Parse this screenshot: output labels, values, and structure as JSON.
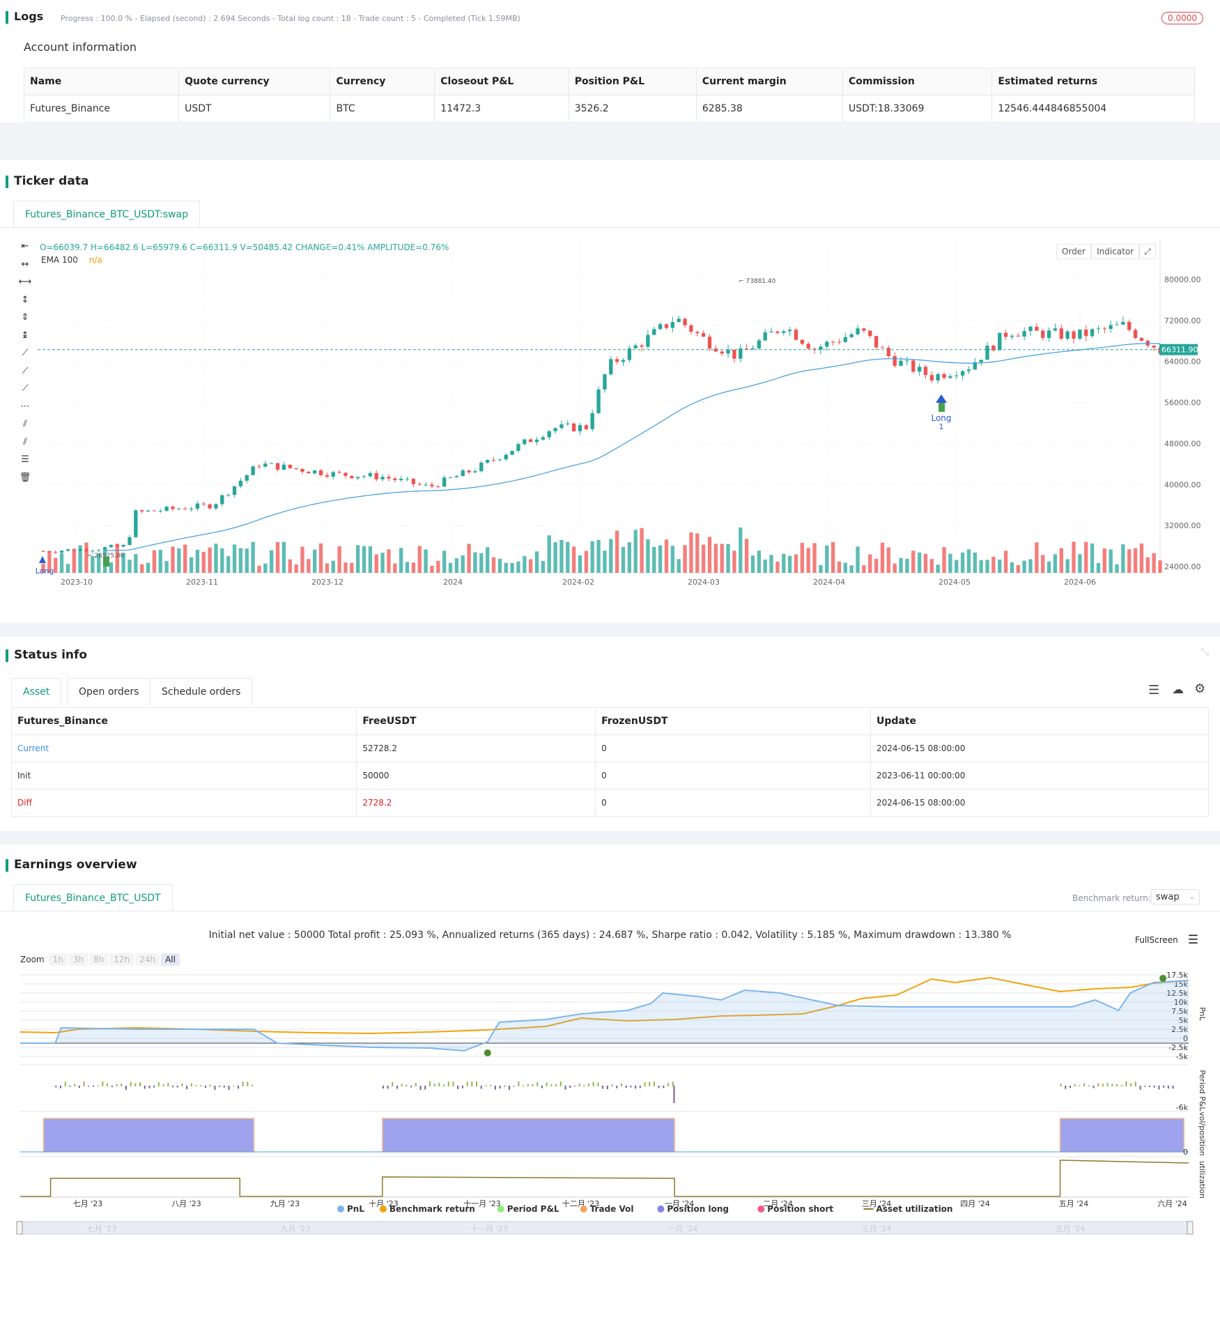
{
  "logs": {
    "title": "Logs",
    "progress": "Progress : 100.0 % - Elapsed (second) : 2.694  Seconds - Total log count : 18 - Trade count : 5 - Completed (Tick 1.59MB)",
    "badge": "0.0000"
  },
  "account": {
    "title": "Account information",
    "headers": [
      "Name",
      "Quote currency",
      "Currency",
      "Closeout P&L",
      "Position P&L",
      "Current margin",
      "Commission",
      "Estimated returns"
    ],
    "row": [
      "Futures_Binance",
      "USDT",
      "BTC",
      "11472.3",
      "3526.2",
      "6285.38",
      "USDT:18.33069",
      "12546.444846855004"
    ]
  },
  "ticker": {
    "title": "Ticker data",
    "tab": "Futures_Binance_BTC_USDT:swap",
    "ohlc": "O=66039.7 H=66482.6 L=65979.6 C=66311.9 V=50485.42 CHANGE=0.41% AMPLITUDE=0.76%",
    "ema_label": "EMA 100",
    "ema_value": "n/a",
    "btn_order": "Order",
    "btn_indicator": "Indicator",
    "last_price": "66311.90",
    "high_label": "73881.40",
    "low_label": "26525.00",
    "long_label": "Long",
    "long_count": "1",
    "long_label_left": "Long",
    "y_ticks": [
      "80000.00",
      "72000.00",
      "64000.00",
      "56000.00",
      "48000.00",
      "40000.00",
      "32000.00",
      "24000.00"
    ],
    "x_ticks": [
      "2023-10",
      "2023-11",
      "2023-12",
      "2024",
      "2024-02",
      "2024-03",
      "2024-04",
      "2024-05",
      "2024-06"
    ],
    "colors": {
      "up": "#26a69a",
      "down": "#ef5350",
      "ema": "#3c9be0",
      "last": "#26a69a"
    }
  },
  "status": {
    "title": "Status info",
    "tabs": [
      "Asset",
      "Open orders",
      "Schedule orders"
    ],
    "headers": [
      "Futures_Binance",
      "FreeUSDT",
      "FrozenUSDT",
      "Update"
    ],
    "rows": [
      [
        "Current",
        "52728.2",
        "0",
        "2024-06-15 08:00:00"
      ],
      [
        "Init",
        "50000",
        "0",
        "2023-06-11 00:00:00"
      ],
      [
        "Diff",
        "2728.2",
        "0",
        "2024-06-15 08:00:00"
      ]
    ]
  },
  "earnings": {
    "title": "Earnings overview",
    "tab": "Futures_Binance_BTC_USDT",
    "benchmark_label": "Benchmark return:",
    "benchmark_value": "swap",
    "summary": "Initial net value : 50000 Total profit : 25.093 %, Annualized returns (365 days) : 24.687 %, Sharpe ratio : 0.042, Volatility : 5.185 %, Maximum drawdown : 13.380 %",
    "fullscreen": "FullScreen",
    "zoom_label": "Zoom",
    "zoom_buttons": [
      "1h",
      "3h",
      "8h",
      "12h",
      "24h",
      "All"
    ],
    "pnl_ticks": [
      "17.5k",
      "15k",
      "12.5k",
      "10k",
      "7.5k",
      "5k",
      "2.5k",
      "0",
      "-2.5k",
      "-5k"
    ],
    "period_ticks": [
      "-6k"
    ],
    "pos_ticks": [
      "0"
    ],
    "axis_titles": [
      "PnL",
      "Period P&L",
      "vol/position",
      "utilization"
    ],
    "x_ticks": [
      "七月 '23",
      "八月 '23",
      "九月 '23",
      "十月 '23",
      "十一月 '23",
      "十二月 '23",
      "一月 '24",
      "二月 '24",
      "三月 '24",
      "四月 '24",
      "五月 '24",
      "六月 '24"
    ],
    "nav_ticks": [
      "七月 '23",
      "九月 '23",
      "十一月 '23",
      "一月 '24",
      "三月 '24",
      "五月 '24"
    ],
    "legend": [
      {
        "label": "PnL",
        "color": "#7cb5ec"
      },
      {
        "label": "Benchmark return",
        "color": "#f0a30a"
      },
      {
        "label": "Period P&L",
        "color": "#90ed7d"
      },
      {
        "label": "Trade Vol",
        "color": "#f7a35c"
      },
      {
        "label": "Position long",
        "color": "#8085e9"
      },
      {
        "label": "Position short",
        "color": "#f15c80"
      },
      {
        "label": "Asset utilization",
        "color": "#8a7a2a"
      }
    ]
  }
}
